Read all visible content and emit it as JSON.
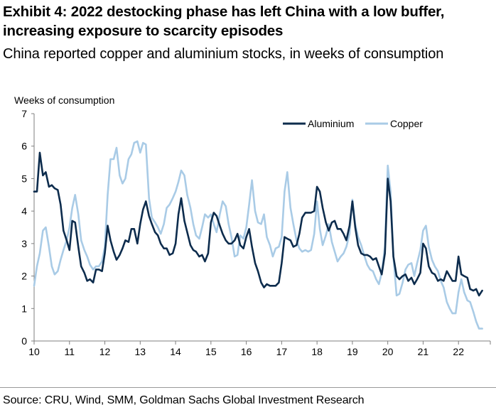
{
  "header": {
    "title": "Exhibit 4: 2022 destocking phase has left China with a low buffer, increasing exposure to scarcity episodes",
    "subtitle": "China reported copper and aluminium stocks, in weeks of consumption"
  },
  "footer": {
    "source": "Source: CRU, Wind, SMM, Goldman Sachs Global Investment Research"
  },
  "chart_data": {
    "type": "line",
    "title": "",
    "xlabel": "",
    "ylabel": "Weeks of consumption",
    "xlim": [
      10,
      22.9
    ],
    "ylim": [
      0,
      7
    ],
    "x_ticks": [
      "10",
      "11",
      "12",
      "13",
      "14",
      "15",
      "16",
      "17",
      "18",
      "19",
      "20",
      "21",
      "22"
    ],
    "y_ticks": [
      "0",
      "1",
      "2",
      "3",
      "4",
      "5",
      "6",
      "7"
    ],
    "grid": false,
    "legend_position": "top-right",
    "series": [
      {
        "name": "Aluminium",
        "color": "#0d2c4d",
        "points": [
          [
            10.0,
            4.6
          ],
          [
            10.08,
            4.6
          ],
          [
            10.16,
            5.8
          ],
          [
            10.25,
            5.1
          ],
          [
            10.33,
            5.2
          ],
          [
            10.42,
            4.75
          ],
          [
            10.5,
            4.8
          ],
          [
            10.58,
            4.7
          ],
          [
            10.67,
            4.65
          ],
          [
            10.75,
            4.2
          ],
          [
            10.83,
            3.4
          ],
          [
            10.92,
            3.1
          ],
          [
            11.0,
            2.8
          ],
          [
            11.08,
            3.7
          ],
          [
            11.16,
            3.65
          ],
          [
            11.25,
            2.9
          ],
          [
            11.33,
            2.3
          ],
          [
            11.42,
            2.1
          ],
          [
            11.5,
            1.85
          ],
          [
            11.58,
            1.9
          ],
          [
            11.67,
            1.8
          ],
          [
            11.75,
            2.2
          ],
          [
            11.83,
            2.2
          ],
          [
            11.92,
            2.15
          ],
          [
            12.0,
            2.7
          ],
          [
            12.08,
            3.55
          ],
          [
            12.16,
            3.1
          ],
          [
            12.25,
            2.75
          ],
          [
            12.33,
            2.5
          ],
          [
            12.42,
            2.65
          ],
          [
            12.5,
            2.85
          ],
          [
            12.58,
            3.1
          ],
          [
            12.67,
            3.05
          ],
          [
            12.75,
            3.45
          ],
          [
            12.83,
            3.45
          ],
          [
            12.92,
            3.0
          ],
          [
            13.0,
            3.6
          ],
          [
            13.08,
            4.05
          ],
          [
            13.16,
            4.3
          ],
          [
            13.25,
            3.85
          ],
          [
            13.33,
            3.6
          ],
          [
            13.42,
            3.35
          ],
          [
            13.5,
            3.25
          ],
          [
            13.58,
            3.0
          ],
          [
            13.67,
            2.85
          ],
          [
            13.75,
            2.85
          ],
          [
            13.83,
            2.65
          ],
          [
            13.92,
            2.7
          ],
          [
            14.0,
            3.0
          ],
          [
            14.08,
            3.9
          ],
          [
            14.16,
            4.4
          ],
          [
            14.25,
            3.7
          ],
          [
            14.33,
            3.35
          ],
          [
            14.42,
            2.95
          ],
          [
            14.5,
            2.8
          ],
          [
            14.58,
            2.75
          ],
          [
            14.67,
            2.6
          ],
          [
            14.75,
            2.65
          ],
          [
            14.83,
            2.45
          ],
          [
            14.92,
            2.7
          ],
          [
            15.0,
            3.65
          ],
          [
            15.08,
            3.95
          ],
          [
            15.16,
            3.85
          ],
          [
            15.25,
            3.55
          ],
          [
            15.33,
            3.3
          ],
          [
            15.42,
            3.1
          ],
          [
            15.5,
            3.0
          ],
          [
            15.58,
            3.0
          ],
          [
            15.67,
            3.1
          ],
          [
            15.75,
            3.3
          ],
          [
            15.83,
            2.95
          ],
          [
            15.92,
            2.85
          ],
          [
            16.0,
            3.2
          ],
          [
            16.08,
            3.45
          ],
          [
            16.16,
            2.9
          ],
          [
            16.25,
            2.4
          ],
          [
            16.33,
            2.15
          ],
          [
            16.42,
            1.8
          ],
          [
            16.5,
            1.65
          ],
          [
            16.58,
            1.75
          ],
          [
            16.67,
            1.7
          ],
          [
            16.75,
            1.7
          ],
          [
            16.83,
            1.7
          ],
          [
            16.92,
            1.8
          ],
          [
            17.0,
            2.4
          ],
          [
            17.08,
            3.2
          ],
          [
            17.16,
            3.15
          ],
          [
            17.25,
            3.1
          ],
          [
            17.33,
            2.9
          ],
          [
            17.42,
            2.95
          ],
          [
            17.5,
            3.3
          ],
          [
            17.58,
            3.8
          ],
          [
            17.67,
            3.95
          ],
          [
            17.75,
            3.95
          ],
          [
            17.83,
            3.95
          ],
          [
            17.92,
            4.0
          ],
          [
            18.0,
            4.75
          ],
          [
            18.08,
            4.6
          ],
          [
            18.16,
            4.1
          ],
          [
            18.25,
            3.65
          ],
          [
            18.33,
            3.4
          ],
          [
            18.42,
            3.65
          ],
          [
            18.5,
            3.7
          ],
          [
            18.58,
            3.45
          ],
          [
            18.67,
            3.45
          ],
          [
            18.75,
            3.3
          ],
          [
            18.83,
            3.1
          ],
          [
            18.92,
            3.55
          ],
          [
            19.0,
            4.3
          ],
          [
            19.08,
            3.5
          ],
          [
            19.16,
            2.95
          ],
          [
            19.25,
            2.7
          ],
          [
            19.33,
            2.65
          ],
          [
            19.42,
            2.65
          ],
          [
            19.5,
            2.6
          ],
          [
            19.58,
            2.5
          ],
          [
            19.67,
            2.55
          ],
          [
            19.75,
            2.3
          ],
          [
            19.83,
            2.05
          ],
          [
            19.92,
            2.7
          ],
          [
            20.0,
            5.0
          ],
          [
            20.08,
            4.3
          ],
          [
            20.16,
            2.6
          ],
          [
            20.25,
            2.0
          ],
          [
            20.33,
            1.9
          ],
          [
            20.42,
            2.0
          ],
          [
            20.5,
            2.05
          ],
          [
            20.58,
            1.85
          ],
          [
            20.67,
            1.95
          ],
          [
            20.75,
            1.75
          ],
          [
            20.83,
            1.9
          ],
          [
            20.92,
            2.1
          ],
          [
            21.0,
            3.0
          ],
          [
            21.08,
            2.85
          ],
          [
            21.16,
            2.3
          ],
          [
            21.25,
            2.1
          ],
          [
            21.33,
            2.05
          ],
          [
            21.42,
            1.85
          ],
          [
            21.5,
            1.9
          ],
          [
            21.58,
            1.85
          ],
          [
            21.67,
            2.15
          ],
          [
            21.75,
            2.0
          ],
          [
            21.83,
            1.85
          ],
          [
            21.92,
            1.85
          ],
          [
            22.0,
            2.6
          ],
          [
            22.08,
            2.05
          ],
          [
            22.16,
            2.0
          ],
          [
            22.25,
            1.95
          ],
          [
            22.33,
            1.6
          ],
          [
            22.42,
            1.55
          ],
          [
            22.5,
            1.6
          ],
          [
            22.58,
            1.4
          ],
          [
            22.67,
            1.55
          ]
        ]
      },
      {
        "name": "Copper",
        "color": "#a9cbe6",
        "points": [
          [
            10.0,
            1.7
          ],
          [
            10.08,
            2.3
          ],
          [
            10.16,
            2.7
          ],
          [
            10.25,
            3.4
          ],
          [
            10.33,
            3.5
          ],
          [
            10.42,
            2.9
          ],
          [
            10.5,
            2.3
          ],
          [
            10.58,
            2.05
          ],
          [
            10.67,
            2.15
          ],
          [
            10.75,
            2.5
          ],
          [
            10.83,
            2.8
          ],
          [
            10.92,
            3.1
          ],
          [
            11.0,
            3.5
          ],
          [
            11.08,
            4.1
          ],
          [
            11.16,
            4.5
          ],
          [
            11.25,
            3.9
          ],
          [
            11.33,
            3.1
          ],
          [
            11.42,
            2.8
          ],
          [
            11.5,
            2.6
          ],
          [
            11.58,
            2.35
          ],
          [
            11.67,
            2.2
          ],
          [
            11.75,
            2.3
          ],
          [
            11.83,
            2.3
          ],
          [
            11.92,
            2.45
          ],
          [
            12.0,
            2.9
          ],
          [
            12.08,
            4.5
          ],
          [
            12.16,
            5.6
          ],
          [
            12.25,
            5.6
          ],
          [
            12.33,
            5.95
          ],
          [
            12.42,
            5.1
          ],
          [
            12.5,
            4.85
          ],
          [
            12.58,
            5.0
          ],
          [
            12.67,
            5.6
          ],
          [
            12.75,
            5.75
          ],
          [
            12.83,
            6.1
          ],
          [
            12.92,
            6.15
          ],
          [
            13.0,
            5.8
          ],
          [
            13.08,
            6.1
          ],
          [
            13.16,
            6.05
          ],
          [
            13.25,
            4.4
          ],
          [
            13.33,
            3.8
          ],
          [
            13.42,
            3.65
          ],
          [
            13.5,
            3.5
          ],
          [
            13.58,
            3.3
          ],
          [
            13.67,
            3.6
          ],
          [
            13.75,
            4.1
          ],
          [
            13.83,
            4.2
          ],
          [
            13.92,
            4.4
          ],
          [
            14.0,
            4.6
          ],
          [
            14.08,
            4.9
          ],
          [
            14.16,
            5.25
          ],
          [
            14.25,
            5.1
          ],
          [
            14.33,
            4.5
          ],
          [
            14.42,
            4.1
          ],
          [
            14.5,
            3.6
          ],
          [
            14.58,
            3.25
          ],
          [
            14.67,
            3.15
          ],
          [
            14.75,
            3.5
          ],
          [
            14.83,
            3.9
          ],
          [
            14.92,
            3.8
          ],
          [
            15.0,
            3.9
          ],
          [
            15.08,
            3.6
          ],
          [
            15.16,
            3.35
          ],
          [
            15.25,
            3.9
          ],
          [
            15.33,
            4.3
          ],
          [
            15.42,
            4.15
          ],
          [
            15.5,
            3.6
          ],
          [
            15.58,
            3.2
          ],
          [
            15.67,
            2.6
          ],
          [
            15.75,
            2.65
          ],
          [
            15.83,
            3.25
          ],
          [
            15.92,
            3.15
          ],
          [
            16.0,
            3.5
          ],
          [
            16.08,
            4.2
          ],
          [
            16.16,
            4.95
          ],
          [
            16.25,
            4.0
          ],
          [
            16.33,
            3.65
          ],
          [
            16.42,
            3.6
          ],
          [
            16.5,
            3.9
          ],
          [
            16.58,
            3.2
          ],
          [
            16.67,
            2.95
          ],
          [
            16.75,
            2.6
          ],
          [
            16.83,
            2.85
          ],
          [
            16.92,
            2.9
          ],
          [
            17.0,
            3.2
          ],
          [
            17.08,
            4.6
          ],
          [
            17.16,
            5.2
          ],
          [
            17.25,
            4.1
          ],
          [
            17.33,
            3.6
          ],
          [
            17.42,
            3.1
          ],
          [
            17.5,
            2.85
          ],
          [
            17.58,
            2.75
          ],
          [
            17.67,
            2.8
          ],
          [
            17.75,
            2.75
          ],
          [
            17.83,
            2.8
          ],
          [
            17.92,
            3.3
          ],
          [
            18.0,
            4.3
          ],
          [
            18.08,
            3.45
          ],
          [
            18.16,
            2.95
          ],
          [
            18.25,
            3.25
          ],
          [
            18.33,
            3.6
          ],
          [
            18.42,
            3.05
          ],
          [
            18.5,
            2.75
          ],
          [
            18.58,
            2.45
          ],
          [
            18.67,
            2.6
          ],
          [
            18.75,
            2.7
          ],
          [
            18.83,
            2.9
          ],
          [
            18.92,
            3.3
          ],
          [
            19.0,
            4.35
          ],
          [
            19.08,
            3.6
          ],
          [
            19.16,
            3.2
          ],
          [
            19.25,
            2.95
          ],
          [
            19.33,
            2.65
          ],
          [
            19.42,
            2.35
          ],
          [
            19.5,
            2.2
          ],
          [
            19.58,
            2.15
          ],
          [
            19.67,
            1.9
          ],
          [
            19.75,
            1.75
          ],
          [
            19.83,
            2.1
          ],
          [
            19.92,
            2.9
          ],
          [
            20.0,
            5.4
          ],
          [
            20.08,
            4.6
          ],
          [
            20.16,
            2.6
          ],
          [
            20.25,
            1.4
          ],
          [
            20.33,
            1.45
          ],
          [
            20.42,
            1.8
          ],
          [
            20.5,
            2.2
          ],
          [
            20.58,
            2.35
          ],
          [
            20.67,
            2.4
          ],
          [
            20.75,
            2.0
          ],
          [
            20.83,
            2.4
          ],
          [
            20.92,
            2.8
          ],
          [
            21.0,
            3.4
          ],
          [
            21.08,
            3.55
          ],
          [
            21.16,
            2.9
          ],
          [
            21.25,
            2.5
          ],
          [
            21.33,
            2.3
          ],
          [
            21.42,
            2.15
          ],
          [
            21.5,
            1.85
          ],
          [
            21.58,
            1.65
          ],
          [
            21.67,
            1.2
          ],
          [
            21.75,
            1.0
          ],
          [
            21.83,
            0.85
          ],
          [
            21.92,
            0.85
          ],
          [
            22.0,
            1.5
          ],
          [
            22.08,
            1.9
          ],
          [
            22.16,
            1.5
          ],
          [
            22.25,
            1.25
          ],
          [
            22.33,
            1.2
          ],
          [
            22.42,
            0.9
          ],
          [
            22.5,
            0.6
          ],
          [
            22.58,
            0.38
          ],
          [
            22.67,
            0.38
          ]
        ]
      }
    ]
  }
}
